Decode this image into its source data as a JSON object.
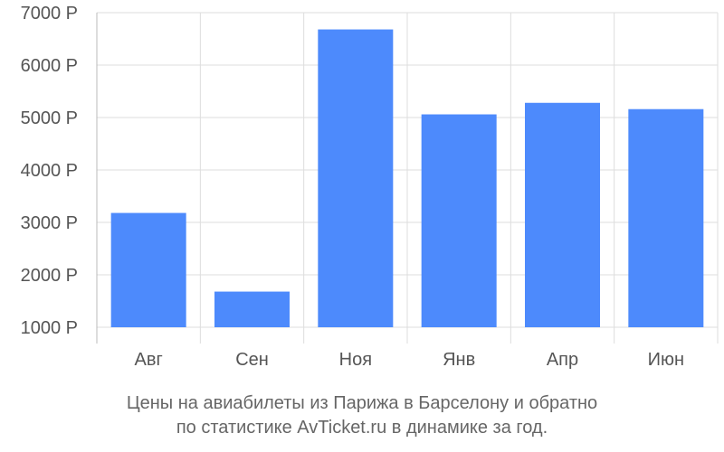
{
  "chart_data": {
    "type": "bar",
    "categories": [
      "Авг",
      "Сен",
      "Ноя",
      "Янв",
      "Апр",
      "Июн"
    ],
    "series": [
      {
        "values": [
          3180,
          1680,
          6680,
          5060,
          5280,
          5160
        ]
      }
    ],
    "y_ticks": [
      1000,
      2000,
      3000,
      4000,
      5000,
      6000,
      7000
    ],
    "y_tick_labels": [
      "1000 Р",
      "2000 Р",
      "3000 Р",
      "4000 Р",
      "5000 Р",
      "6000 Р",
      "7000 Р"
    ],
    "ylim": [
      1000,
      7000
    ],
    "grid": true,
    "title": "",
    "xlabel": "",
    "ylabel": "",
    "colors": {
      "bar": "#4d8afc",
      "grid": "#dddddd",
      "axis_text": "#555555",
      "caption_text": "#666666"
    }
  },
  "caption": {
    "line1": "Цены на авиабилеты из Парижа в Барселону и обратно",
    "line2": "по статистике AvTicket.ru в динамике за год."
  }
}
